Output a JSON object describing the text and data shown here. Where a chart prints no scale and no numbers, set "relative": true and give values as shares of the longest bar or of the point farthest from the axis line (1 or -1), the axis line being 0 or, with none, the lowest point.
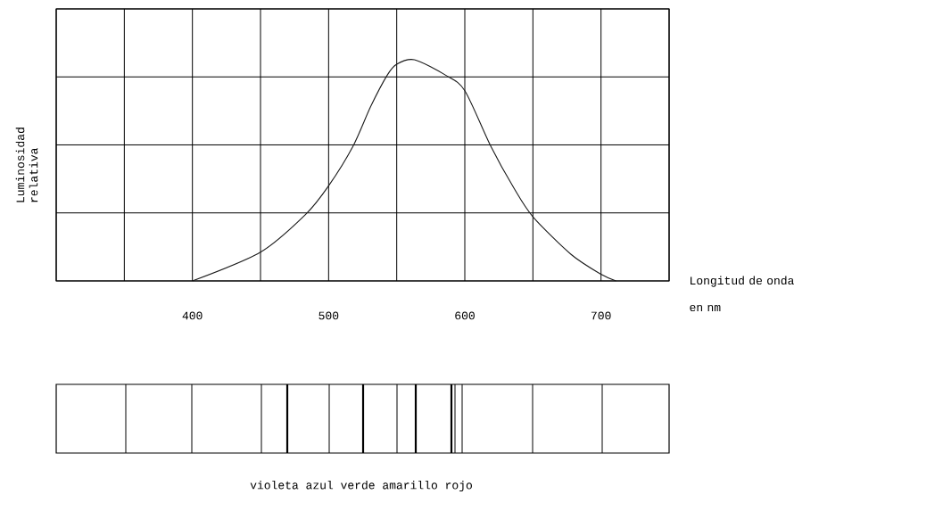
{
  "chart_data": {
    "type": "line",
    "relative": true,
    "xlabel": "Longitud de onda en nm",
    "ylabel": "Luminosidad relativa",
    "x": [
      400,
      450,
      483,
      500,
      518,
      531,
      543,
      550,
      563,
      586,
      600,
      619,
      636,
      650,
      678,
      700,
      711
    ],
    "series": [
      {
        "color": "#1a1a1a",
        "values": [
          0,
          0.13,
          0.3,
          0.43,
          0.61,
          0.79,
          0.93,
          0.98,
          1.0,
          0.93,
          0.86,
          0.61,
          0.42,
          0.29,
          0.12,
          0.03,
          0
        ]
      }
    ],
    "xlim": [
      300,
      750
    ],
    "xticks": [
      {
        "value": 300,
        "label": null
      },
      {
        "value": 350,
        "label": null
      },
      400,
      {
        "value": 450,
        "label": null
      },
      500,
      {
        "value": 550,
        "label": null
      },
      600,
      {
        "value": 650,
        "label": null
      },
      700,
      {
        "value": 750,
        "label": null
      }
    ],
    "grid": true,
    "marker": "none",
    "line_style": "solid",
    "annotations": [
      "violeta azul verde amarillo rojo"
    ]
  }
}
